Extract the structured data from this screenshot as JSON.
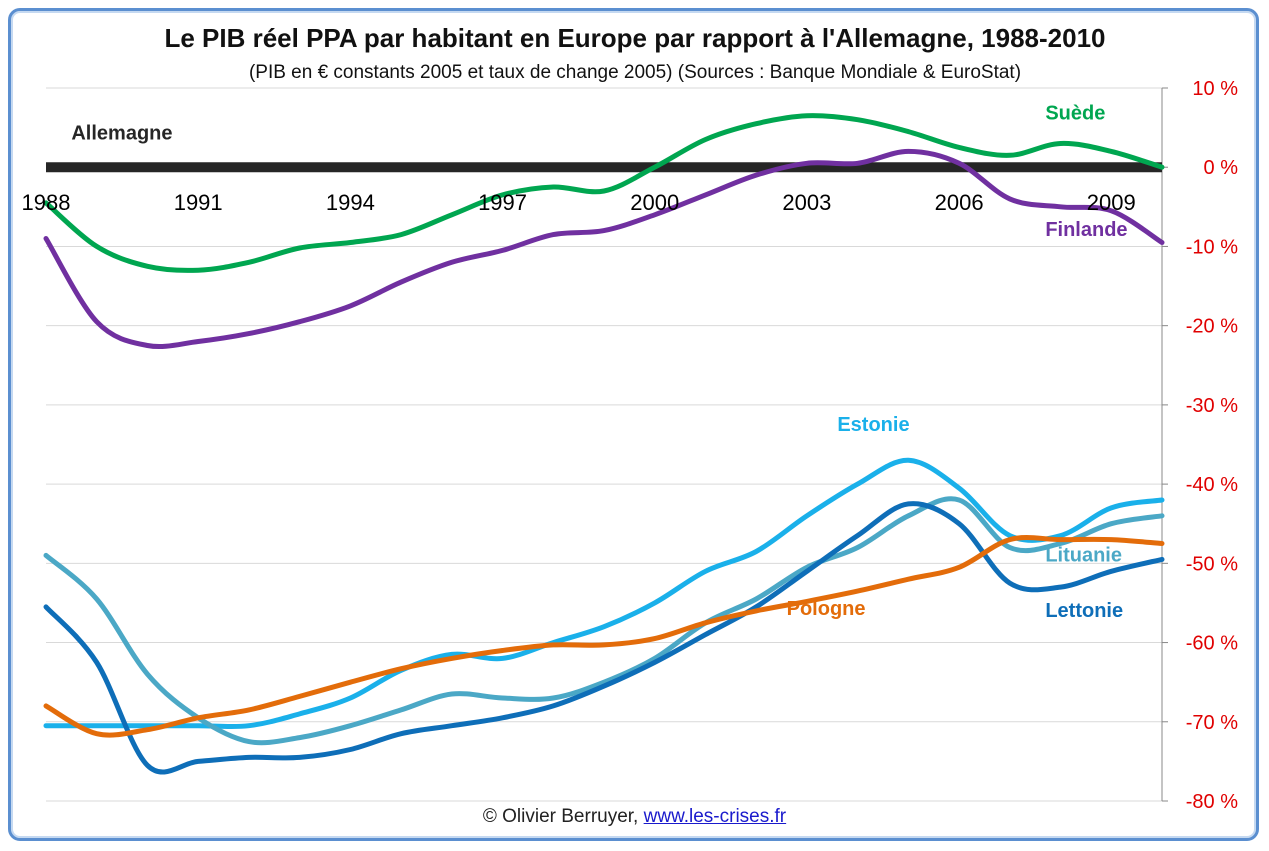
{
  "chart_data": {
    "type": "line",
    "title": "Le PIB réel PPA par habitant en Europe par rapport à l'Allemagne, 1988-2010",
    "subtitle": "(PIB en € constants 2005 et taux de change 2005) (Sources : Banque Mondiale & EuroStat)",
    "xlim": [
      1988,
      2010
    ],
    "ylim": [
      -80,
      10
    ],
    "x_ticks": [
      1988,
      1991,
      1994,
      1997,
      2000,
      2003,
      2006,
      2009
    ],
    "y_ticks": [
      10,
      0,
      -10,
      -20,
      -30,
      -40,
      -50,
      -60,
      -70,
      -80
    ],
    "y_tick_suffix": " %",
    "y_axis_position": "right",
    "x_axis_at_y": 0,
    "grid": true,
    "reference": {
      "name": "Allemagne",
      "value": 0,
      "color": "#262626"
    },
    "series": [
      {
        "name": "Suède",
        "color": "#00a650",
        "x": [
          1988,
          1989,
          1990,
          1991,
          1992,
          1993,
          1994,
          1995,
          1996,
          1997,
          1998,
          1999,
          2000,
          2001,
          2002,
          2003,
          2004,
          2005,
          2006,
          2007,
          2008,
          2009,
          2010
        ],
        "y": [
          -4.5,
          -10,
          -12.5,
          -13,
          -12,
          -10.2,
          -9.5,
          -8.5,
          -6,
          -3.5,
          -2.5,
          -3,
          0,
          3.5,
          5.5,
          6.5,
          6,
          4.5,
          2.5,
          1.5,
          3,
          2,
          0
        ]
      },
      {
        "name": "Finlande",
        "color": "#7030a0",
        "x": [
          1988,
          1989,
          1990,
          1991,
          1992,
          1993,
          1994,
          1995,
          1996,
          1997,
          1998,
          1999,
          2000,
          2001,
          2002,
          2003,
          2004,
          2005,
          2006,
          2007,
          2008,
          2009,
          2010
        ],
        "y": [
          -9,
          -19.5,
          -22.5,
          -22,
          -21,
          -19.5,
          -17.5,
          -14.5,
          -12,
          -10.5,
          -8.5,
          -8,
          -6,
          -3.5,
          -1,
          0.5,
          0.5,
          2,
          0.5,
          -4,
          -5,
          -5.5,
          -9.5
        ]
      },
      {
        "name": "Estonie",
        "color": "#1ab0ea",
        "x": [
          1988,
          1989,
          1990,
          1991,
          1992,
          1993,
          1994,
          1995,
          1996,
          1997,
          1998,
          1999,
          2000,
          2001,
          2002,
          2003,
          2004,
          2005,
          2006,
          2007,
          2008,
          2009,
          2010
        ],
        "y": [
          -70.5,
          -70.5,
          -70.5,
          -70.5,
          -70.5,
          -69,
          -67,
          -63.5,
          -61.5,
          -62,
          -60,
          -58,
          -55,
          -51,
          -48.5,
          -44,
          -40,
          -37,
          -40.5,
          -46.5,
          -46.5,
          -43,
          -42
        ]
      },
      {
        "name": "Lituanie",
        "color": "#4ba8c6",
        "x": [
          1988,
          1989,
          1990,
          1991,
          1992,
          1993,
          1994,
          1995,
          1996,
          1997,
          1998,
          1999,
          2000,
          2001,
          2002,
          2003,
          2004,
          2005,
          2006,
          2007,
          2008,
          2009,
          2010
        ],
        "y": [
          -49,
          -54.5,
          -64,
          -69.5,
          -72.5,
          -72,
          -70.5,
          -68.5,
          -66.5,
          -67,
          -67,
          -65,
          -62,
          -57.5,
          -54.5,
          -50.5,
          -48,
          -44,
          -42,
          -48,
          -47.5,
          -45,
          -44
        ]
      },
      {
        "name": "Lettonie",
        "color": "#0e6eb8",
        "x": [
          1988,
          1989,
          1990,
          1991,
          1992,
          1993,
          1994,
          1995,
          1996,
          1997,
          1998,
          1999,
          2000,
          2001,
          2002,
          2003,
          2004,
          2005,
          2006,
          2007,
          2008,
          2009,
          2010
        ],
        "y": [
          -55.5,
          -62.5,
          -75.5,
          -75,
          -74.5,
          -74.5,
          -73.5,
          -71.5,
          -70.5,
          -69.5,
          -68,
          -65.5,
          -62.5,
          -59,
          -55.5,
          -51,
          -46.5,
          -42.5,
          -45,
          -52.5,
          -53,
          -51,
          -49.5
        ]
      },
      {
        "name": "Pologne",
        "color": "#e36c0a",
        "x": [
          1988,
          1989,
          1990,
          1991,
          1992,
          1993,
          1994,
          1995,
          1996,
          1997,
          1998,
          1999,
          2000,
          2001,
          2002,
          2003,
          2004,
          2005,
          2006,
          2007,
          2008,
          2009,
          2010
        ],
        "y": [
          -68,
          -71.5,
          -71,
          -69.5,
          -68.5,
          -66.8,
          -65,
          -63.3,
          -62,
          -61,
          -60.3,
          -60.3,
          -59.5,
          -57.5,
          -56,
          -54.8,
          -53.5,
          -52,
          -50.5,
          -47,
          -47,
          -47,
          -47.5
        ]
      }
    ],
    "labels": [
      {
        "text": "Allemagne",
        "series": "Allemagne",
        "x": 1988.5,
        "y": 3.5
      },
      {
        "text": "Suède",
        "series": "Suède",
        "x": 2007.7,
        "y": 6
      },
      {
        "text": "Finlande",
        "series": "Finlande",
        "x": 2007.7,
        "y": -8.7
      },
      {
        "text": "Estonie",
        "series": "Estonie",
        "x": 2003.6,
        "y": -33.3
      },
      {
        "text": "Lituanie",
        "series": "Lituanie",
        "x": 2007.7,
        "y": -49.8
      },
      {
        "text": "Pologne",
        "series": "Pologne",
        "x": 2002.6,
        "y": -56.5
      },
      {
        "text": "Lettonie",
        "series": "Lettonie",
        "x": 2007.7,
        "y": -56.8
      }
    ]
  },
  "footer": {
    "copyright": "© Olivier Berruyer,",
    "link": "www.les-crises.fr"
  }
}
